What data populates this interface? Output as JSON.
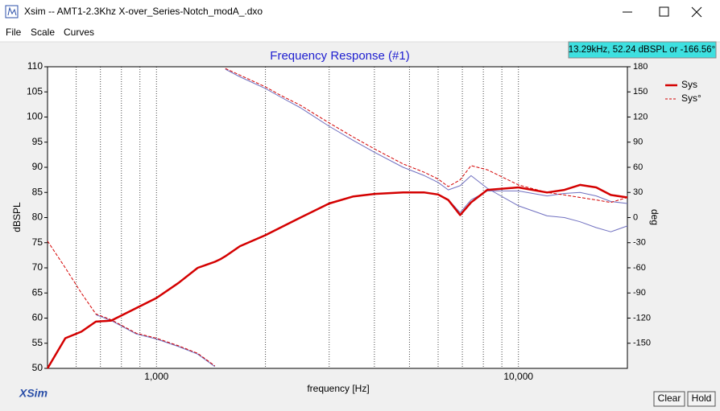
{
  "window": {
    "title": "Xsim -- AMT1-2.3Khz X-over_Series-Notch_modA_.dxo",
    "menu": [
      "File",
      "Scale",
      "Curves"
    ]
  },
  "chart_data": {
    "type": "line",
    "title": "Frequency Response (#1)",
    "x_label": "frequency [Hz]",
    "y_label": "dBSPL",
    "y2_label": "deg",
    "annotation": "13.29kHz, 52.24 dBSPL or -166.56°",
    "x_scale": "log",
    "x": [
      500,
      560,
      620,
      680,
      750,
      880,
      1000,
      1150,
      1300,
      1450,
      1500,
      1550,
      1700,
      2000,
      2200,
      2500,
      3000,
      3500,
      4000,
      4800,
      5500,
      6000,
      6400,
      6900,
      7400,
      8200,
      10000,
      12000,
      13400,
      14800,
      16400,
      18000,
      20000
    ],
    "xlim": [
      500,
      20000
    ],
    "xticks": [
      {
        "value": 1000,
        "label": "1,000"
      },
      {
        "value": 10000,
        "label": "10,000"
      }
    ],
    "xgrid": [
      600,
      700,
      800,
      900,
      2000,
      3000,
      4000,
      5000,
      6000,
      7000,
      8000,
      9000
    ],
    "ylim": [
      50,
      110
    ],
    "yticks": [
      110,
      105,
      100,
      95,
      90,
      85,
      80,
      75,
      70,
      65,
      60,
      55,
      50
    ],
    "y2lim": [
      -180,
      180
    ],
    "y2ticks": [
      180,
      150,
      120,
      90,
      60,
      30,
      0,
      -30,
      -60,
      -90,
      -120,
      -150
    ],
    "legend": "upper right",
    "series": [
      {
        "name": "Sys",
        "color": "#d40000",
        "style": "solid",
        "width": 2.5,
        "values": [
          50,
          56,
          57.3,
          59.3,
          59.5,
          62,
          64,
          67,
          70,
          71.2,
          71.7,
          72.3,
          74.3,
          76.5,
          78,
          80,
          82.8,
          84.2,
          84.7,
          85,
          85,
          84.6,
          83.5,
          80.5,
          83,
          85.5,
          86,
          85,
          85.5,
          86.5,
          86,
          84.5,
          84
        ]
      },
      {
        "name": "Sys°",
        "color": "#d40000",
        "style": "dashed",
        "width": 1,
        "axis": "y2",
        "values": [
          -28,
          -60,
          -90,
          -115,
          -122,
          -138,
          -144,
          -153,
          -162,
          -177,
          null,
          178,
          170,
          156,
          146,
          134,
          113,
          96,
          82,
          64,
          54,
          46,
          37,
          45,
          62,
          57,
          39,
          30,
          27,
          24,
          21,
          18,
          24
        ]
      },
      {
        "color": "#7070c0",
        "style": "solid",
        "width": 1,
        "values": [
          50,
          56,
          57.3,
          59.2,
          59.4,
          62,
          64,
          67,
          70,
          71.2,
          71.7,
          72.3,
          74.3,
          76.5,
          78,
          80,
          82.8,
          84.2,
          84.7,
          85,
          85,
          84.6,
          83.6,
          81,
          83.5,
          85.3,
          85.3,
          84.3,
          84.8,
          85,
          84.3,
          83.2,
          82.8
        ]
      },
      {
        "color": "#7070c0",
        "style": "solid",
        "width": 1,
        "axis": "y2",
        "values": [
          null,
          null,
          null,
          -116,
          -123,
          -139,
          -145,
          -154,
          -163,
          -178,
          null,
          177,
          168,
          154,
          144,
          131,
          109,
          92,
          78,
          60,
          50,
          42,
          33,
          38,
          50,
          35,
          14,
          2,
          0,
          -5,
          -12,
          -17,
          -10
        ]
      }
    ]
  },
  "logo": "XSim",
  "buttons": [
    "Clear",
    "Hold"
  ]
}
